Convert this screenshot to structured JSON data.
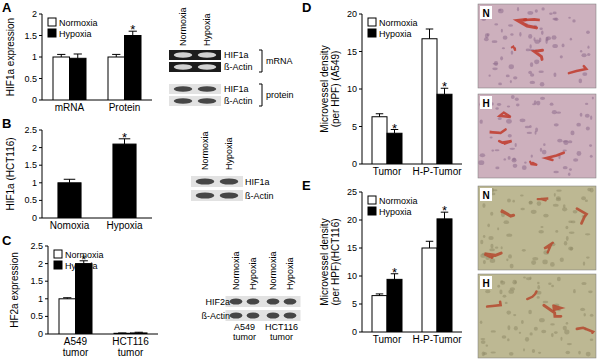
{
  "chart_data": [
    {
      "type": "bar",
      "title": "A",
      "ylabel": "HIF1a expression",
      "categories": [
        "mRNA",
        "Protein"
      ],
      "series": [
        {
          "name": "Normoxia",
          "color": "#ffffff",
          "values": [
            1.0,
            1.0
          ],
          "errors": [
            0.06,
            0.06
          ]
        },
        {
          "name": "Hypoxia",
          "color": "#000000",
          "values": [
            0.97,
            1.5
          ],
          "errors": [
            0.1,
            0.1
          ]
        }
      ],
      "ylim": [
        0,
        2
      ],
      "yticks": [
        0,
        0.5,
        1,
        1.5,
        2
      ],
      "legend": "upper left",
      "annotations": [
        {
          "text": "*",
          "category": "Protein",
          "series": "Hypoxia"
        }
      ]
    },
    {
      "type": "bar",
      "title": "B",
      "ylabel": "HIF1a (HCT116)",
      "categories": [
        "Nomoxia",
        "Hypoxia"
      ],
      "values": [
        1.0,
        2.1
      ],
      "errors": [
        0.1,
        0.15
      ],
      "color": "#000000",
      "ylim": [
        0,
        2.5
      ],
      "yticks": [
        0,
        0.5,
        1,
        1.5,
        2,
        2.5
      ],
      "annotations": [
        {
          "text": "*",
          "category": "Hypoxia"
        }
      ]
    },
    {
      "type": "bar",
      "title": "C",
      "ylabel": "HF2a expression",
      "categories": [
        "A549 tumor",
        "HCT116 tumor"
      ],
      "series": [
        {
          "name": "Normoxia",
          "color": "#ffffff",
          "values": [
            1.0,
            0.02
          ],
          "errors": [
            0.03,
            0.01
          ]
        },
        {
          "name": "Hypoxia",
          "color": "#000000",
          "values": [
            2.0,
            0.03
          ],
          "errors": [
            0.08,
            0.02
          ]
        }
      ],
      "ylim": [
        0,
        2.5
      ],
      "yticks": [
        0,
        0.5,
        1,
        1.5,
        2,
        2.5
      ],
      "legend": "upper left",
      "annotations": [
        {
          "text": "*",
          "category": "A549 tumor",
          "series": "Hypoxia"
        }
      ]
    },
    {
      "type": "bar",
      "title": "D",
      "ylabel": "Microvessel density (per HPF) (A549)",
      "categories": [
        "Tumor",
        "H-P-Tumor"
      ],
      "series": [
        {
          "name": "Normoxia",
          "color": "#ffffff",
          "values": [
            6.3,
            16.7
          ],
          "errors": [
            0.4,
            1.3
          ]
        },
        {
          "name": "Hypoxia",
          "color": "#000000",
          "values": [
            4.1,
            9.3
          ],
          "errors": [
            0.5,
            0.8
          ]
        }
      ],
      "ylim": [
        0,
        20
      ],
      "yticks": [
        0,
        5,
        10,
        15,
        20
      ],
      "legend": "upper left",
      "annotations": [
        {
          "text": "*",
          "category": "Tumor",
          "series": "Hypoxia"
        },
        {
          "text": "*",
          "category": "H-P-Tumor",
          "series": "Hypoxia"
        }
      ]
    },
    {
      "type": "bar",
      "title": "E",
      "ylabel": "Microvessel density (per HPF)(HCT116)",
      "categories": [
        "Tumor",
        "H-P-Tumor"
      ],
      "series": [
        {
          "name": "Normoxia",
          "color": "#ffffff",
          "values": [
            6.5,
            15
          ],
          "errors": [
            0.3,
            1.2
          ]
        },
        {
          "name": "Hypoxia",
          "color": "#000000",
          "values": [
            9.4,
            20.2
          ],
          "errors": [
            1.0,
            1.2
          ]
        }
      ],
      "ylim": [
        0,
        25
      ],
      "yticks": [
        0,
        5,
        10,
        15,
        20,
        25
      ],
      "legend": "upper left",
      "annotations": [
        {
          "text": "*",
          "category": "Tumor",
          "series": "Hypoxia"
        },
        {
          "text": "*",
          "category": "H-P-Tumor",
          "series": "Hypoxia"
        }
      ]
    }
  ],
  "blots": [
    {
      "columns": [
        "Normoxia",
        "Hypoxia"
      ],
      "groups": [
        {
          "label": "mRNA",
          "rows": [
            "HIF1a",
            "ß-Actin"
          ]
        },
        {
          "label": "protein",
          "rows": [
            "HIF1a",
            "ß-Actin"
          ]
        }
      ]
    },
    {
      "columns": [
        "Normoxia",
        "Hypoxia"
      ],
      "groups": [
        {
          "rows": [
            "HIF1a",
            "ß-Actin"
          ]
        }
      ]
    },
    {
      "columns": [
        "Normoxia",
        "Hypoxia",
        "Normoxia",
        "Hypoxia"
      ],
      "column_groups": [
        "A549 tumor",
        "HCT116 tumor"
      ],
      "groups": [
        {
          "rows": [
            "HIF2a",
            "ß-Actin"
          ]
        }
      ]
    }
  ],
  "micrographs": [
    {
      "labels": [
        "N",
        "H"
      ]
    },
    {
      "labels": [
        "N",
        "H"
      ]
    }
  ]
}
